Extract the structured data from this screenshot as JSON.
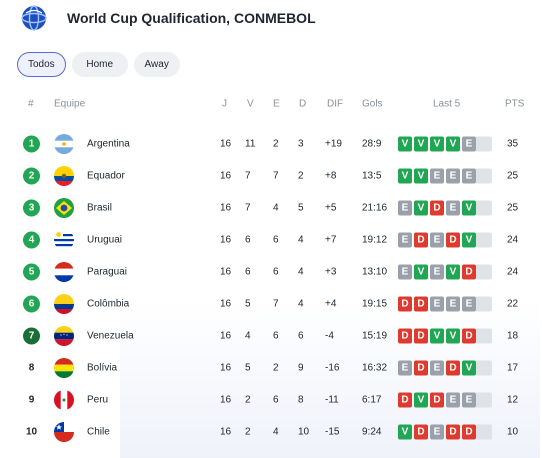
{
  "header": {
    "title": "World Cup Qualification, CONMEBOL",
    "logo_icon": "conmebol-globe-icon"
  },
  "filters": [
    "Todos",
    "Home",
    "Away"
  ],
  "active_filter": "Todos",
  "columns": {
    "rank": "#",
    "team": "Equipe",
    "played": "J",
    "won": "V",
    "drawn": "E",
    "lost": "D",
    "diff": "DIF",
    "goals": "Gols",
    "last5": "Last 5",
    "points": "PTS"
  },
  "colors": {
    "qualified": "#21a654",
    "playoff": "#196e35",
    "win": "#21a654",
    "draw": "#9aa1ab",
    "loss": "#dd3b2f",
    "accent": "#5a6bd8"
  },
  "rows": [
    {
      "rank": "1",
      "team": "Argentina",
      "flag": "argentina-flag-icon",
      "played": "16",
      "won": "11",
      "drawn": "2",
      "lost": "3",
      "diff": "+19",
      "goals": "28:9",
      "last5": [
        "V",
        "V",
        "V",
        "V",
        "E"
      ],
      "points": "35",
      "zone": "qualified"
    },
    {
      "rank": "2",
      "team": "Equador",
      "flag": "ecuador-flag-icon",
      "played": "16",
      "won": "7",
      "drawn": "7",
      "lost": "2",
      "diff": "+8",
      "goals": "13:5",
      "last5": [
        "V",
        "V",
        "E",
        "E",
        "E"
      ],
      "points": "25",
      "zone": "qualified"
    },
    {
      "rank": "3",
      "team": "Brasil",
      "flag": "brazil-flag-icon",
      "played": "16",
      "won": "7",
      "drawn": "4",
      "lost": "5",
      "diff": "+5",
      "goals": "21:16",
      "last5": [
        "E",
        "V",
        "D",
        "E",
        "V"
      ],
      "points": "25",
      "zone": "qualified"
    },
    {
      "rank": "4",
      "team": "Uruguai",
      "flag": "uruguay-flag-icon",
      "played": "16",
      "won": "6",
      "drawn": "6",
      "lost": "4",
      "diff": "+7",
      "goals": "19:12",
      "last5": [
        "E",
        "D",
        "E",
        "D",
        "V"
      ],
      "points": "24",
      "zone": "qualified"
    },
    {
      "rank": "5",
      "team": "Paraguai",
      "flag": "paraguay-flag-icon",
      "played": "16",
      "won": "6",
      "drawn": "6",
      "lost": "4",
      "diff": "+3",
      "goals": "13:10",
      "last5": [
        "E",
        "V",
        "E",
        "V",
        "D"
      ],
      "points": "24",
      "zone": "qualified"
    },
    {
      "rank": "6",
      "team": "Colômbia",
      "flag": "colombia-flag-icon",
      "played": "16",
      "won": "5",
      "drawn": "7",
      "lost": "4",
      "diff": "+4",
      "goals": "19:15",
      "last5": [
        "D",
        "D",
        "E",
        "E",
        "E"
      ],
      "points": "22",
      "zone": "qualified"
    },
    {
      "rank": "7",
      "team": "Venezuela",
      "flag": "venezuela-flag-icon",
      "played": "16",
      "won": "4",
      "drawn": "6",
      "lost": "6",
      "diff": "-4",
      "goals": "15:19",
      "last5": [
        "D",
        "D",
        "V",
        "V",
        "D"
      ],
      "points": "18",
      "zone": "playoff"
    },
    {
      "rank": "8",
      "team": "Bolívia",
      "flag": "bolivia-flag-icon",
      "played": "16",
      "won": "5",
      "drawn": "2",
      "lost": "9",
      "diff": "-16",
      "goals": "16:32",
      "last5": [
        "E",
        "D",
        "E",
        "D",
        "V"
      ],
      "points": "17",
      "zone": ""
    },
    {
      "rank": "9",
      "team": "Peru",
      "flag": "peru-flag-icon",
      "played": "16",
      "won": "2",
      "drawn": "6",
      "lost": "8",
      "diff": "-11",
      "goals": "6:17",
      "last5": [
        "D",
        "V",
        "D",
        "E",
        "E"
      ],
      "points": "12",
      "zone": ""
    },
    {
      "rank": "10",
      "team": "Chile",
      "flag": "chile-flag-icon",
      "played": "16",
      "won": "2",
      "drawn": "4",
      "lost": "10",
      "diff": "-15",
      "goals": "9:24",
      "last5": [
        "V",
        "D",
        "E",
        "D",
        "D"
      ],
      "points": "10",
      "zone": ""
    }
  ]
}
